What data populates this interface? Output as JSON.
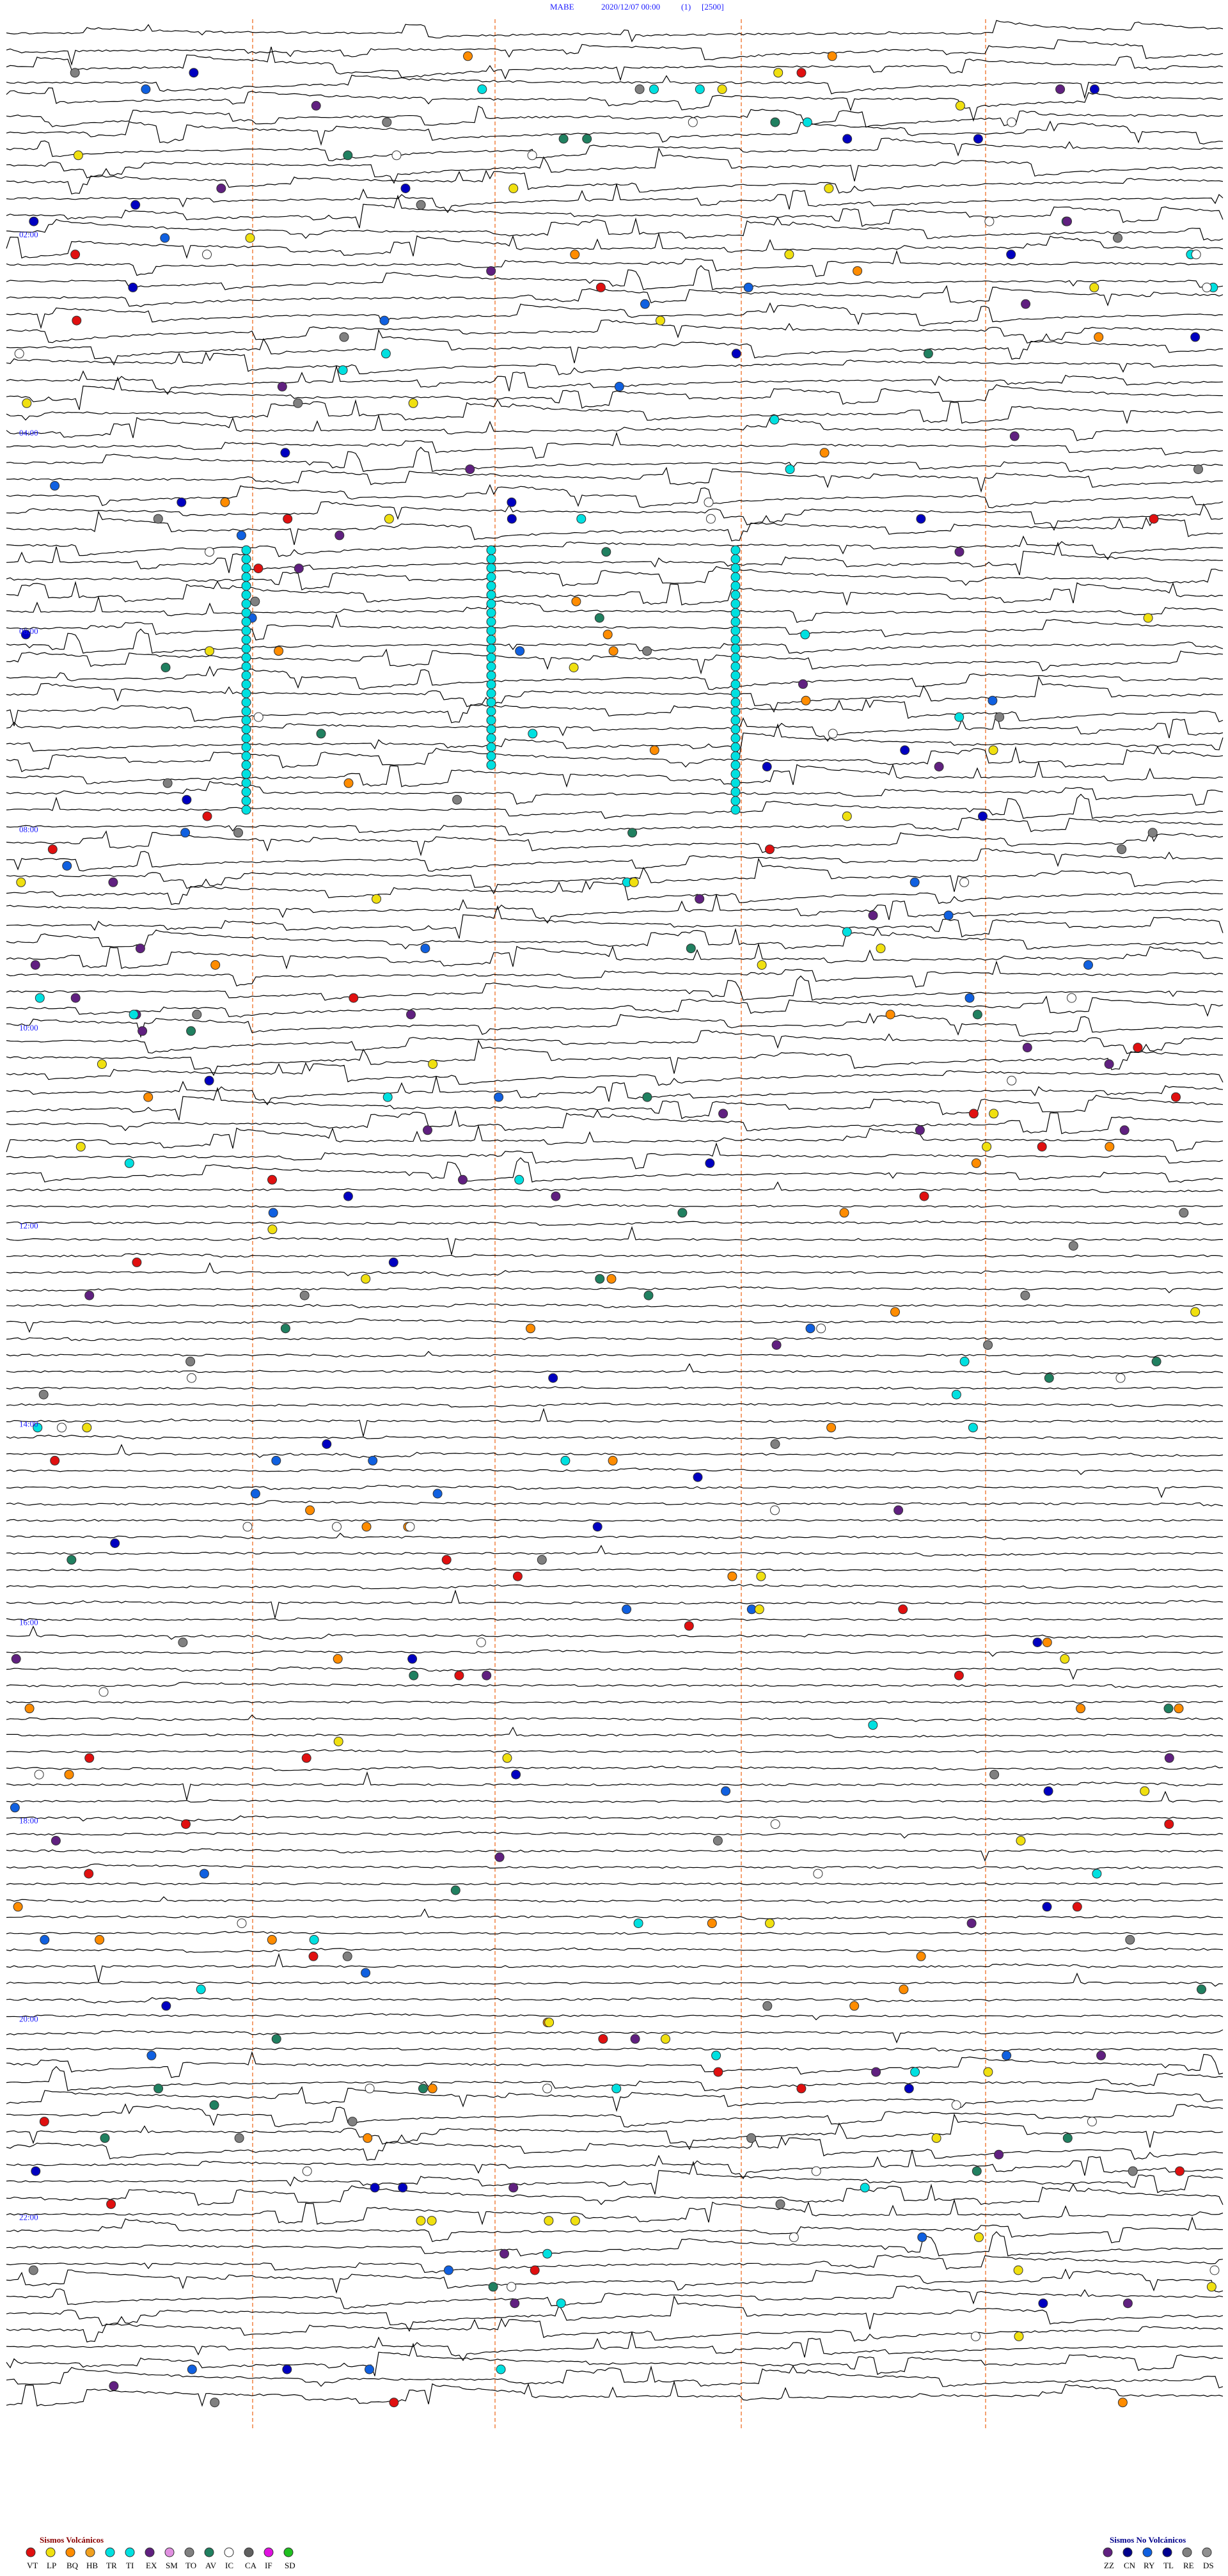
{
  "header": {
    "station": "MABE",
    "datetime": "2020/12/07 00:00",
    "channel": "(1)",
    "scale": "[2500]"
  },
  "time_labels": [
    "02:00",
    "04:00",
    "06:00",
    "08:00",
    "10:00",
    "12:00",
    "14:00",
    "16:00",
    "18:00",
    "20:00",
    "22:00"
  ],
  "legend": {
    "volcanic": {
      "title": "Sismos Volcánicos",
      "codes": [
        "VT",
        "LP",
        "BQ",
        "HB",
        "TR",
        "TI",
        "EX",
        "SM",
        "TO",
        "AV",
        "IC",
        "CA",
        "IF",
        "SD"
      ]
    },
    "non_volcanic": {
      "title": "Sismos No Volcánicos",
      "codes": [
        "ZZ",
        "CN",
        "RY",
        "TL",
        "RE",
        "DS"
      ]
    }
  }
}
